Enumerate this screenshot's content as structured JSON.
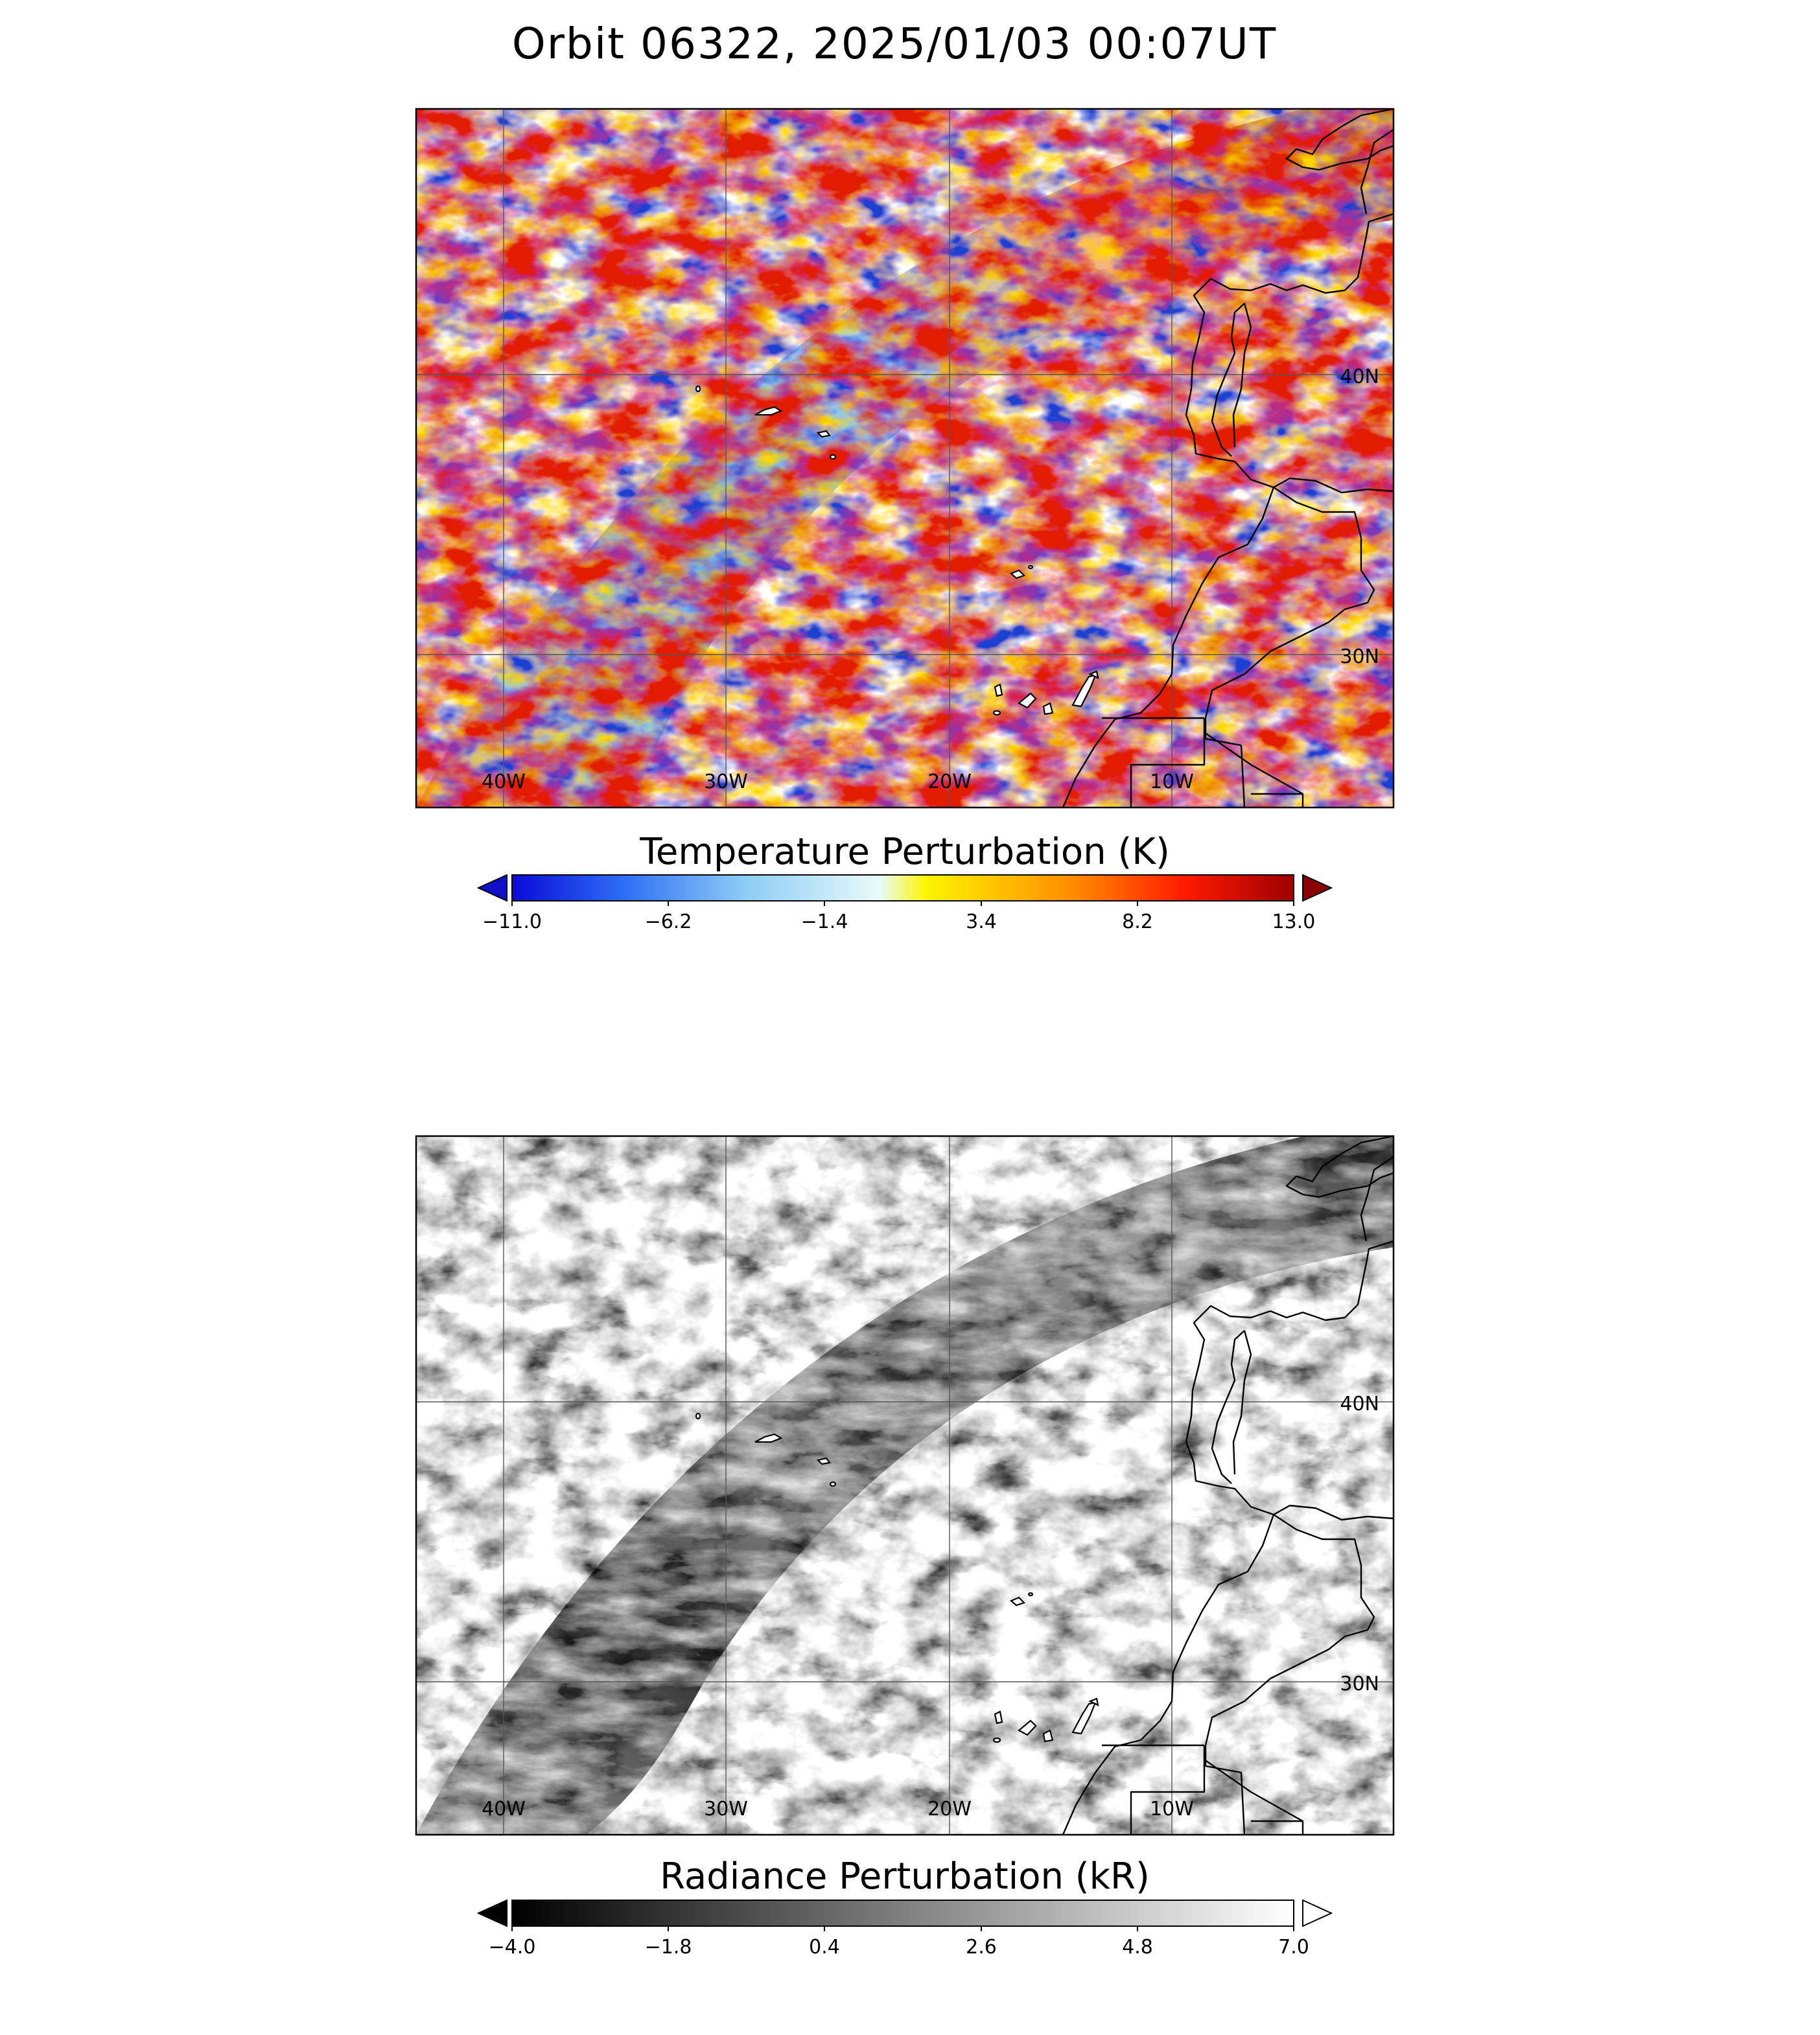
{
  "title": "Orbit 06322, 2025/01/03 00:07UT",
  "panels": [
    {
      "id": "temperature",
      "colorbar_title": "Temperature Perturbation (K)",
      "colorbar_ticks": [
        "−11.0",
        "−6.2",
        "−1.4",
        "3.4",
        "8.2",
        "13.0"
      ],
      "colorbar_range": [
        -11.0,
        13.0
      ],
      "colormap": "blue-white-yellow-red",
      "colormap_stops": [
        "#0a0ad6",
        "#2d6cf5",
        "#8fcdf5",
        "#e8fbfb",
        "#fcf500",
        "#ff8a00",
        "#ff1a00",
        "#a00000"
      ],
      "extend_low_color": "#1010c8",
      "extend_high_color": "#8b0000",
      "lon_labels": [
        "40W",
        "30W",
        "20W",
        "10W"
      ],
      "lat_labels": [
        "40N",
        "30N"
      ]
    },
    {
      "id": "radiance",
      "colorbar_title": "Radiance Perturbation (kR)",
      "colorbar_ticks": [
        "−4.0",
        "−1.8",
        "0.4",
        "2.6",
        "4.8",
        "7.0"
      ],
      "colorbar_range": [
        -4.0,
        7.0
      ],
      "colormap": "grayscale",
      "colormap_stops": [
        "#000000",
        "#ffffff"
      ],
      "extend_low_color": "#000000",
      "extend_high_color": "#ffffff",
      "lon_labels": [
        "40W",
        "30W",
        "20W",
        "10W"
      ],
      "lat_labels": [
        "40N",
        "30N"
      ]
    }
  ],
  "map_extent": {
    "lon": [
      -44,
      -1
    ],
    "lat": [
      22.5,
      47.5
    ]
  }
}
